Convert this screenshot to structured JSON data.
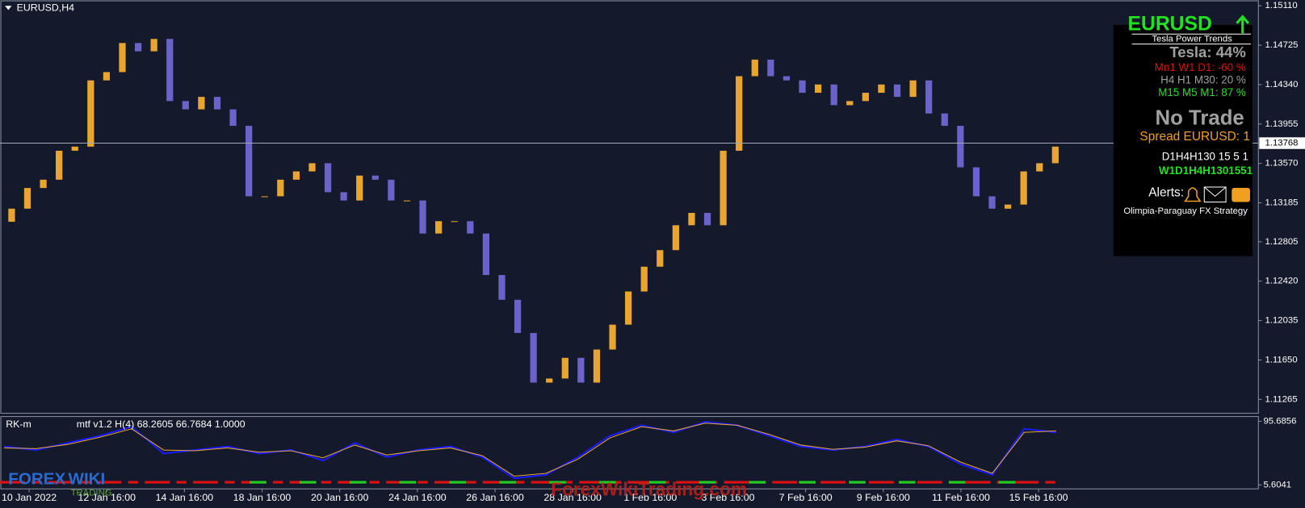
{
  "chart_data": [
    {
      "type": "candlestick",
      "title": "EURUSD,H4",
      "open": [
        1.13,
        1.13128,
        1.1333,
        1.13411,
        1.13694,
        1.13734,
        1.14381,
        1.14462,
        1.14746,
        1.14665,
        1.14786,
        1.14179,
        1.14098,
        1.1422,
        1.14098,
        1.13937,
        1.13249,
        1.13249,
        1.13411,
        1.13492,
        1.13572,
        1.13289,
        1.13208,
        1.13451,
        1.13411,
        1.13208,
        1.13208,
        1.12885,
        1.13006,
        1.13006,
        1.12885,
        1.1248,
        1.12238,
        1.11914,
        1.11429,
        1.11469,
        1.11671,
        1.11429,
        1.11752,
        1.11995,
        1.12319,
        1.12561,
        1.12723,
        1.12966,
        1.13087,
        1.12966,
        1.13694,
        1.14422,
        1.14584,
        1.14422,
        1.14381,
        1.1426,
        1.14341,
        1.14139,
        1.14179,
        1.1426,
        1.14341,
        1.1422,
        1.14381,
        1.14058,
        1.13937,
        1.13532,
        1.13249,
        1.13128,
        1.13168,
        1.13492,
        1.13572
      ],
      "close": [
        1.13128,
        1.1333,
        1.13411,
        1.13694,
        1.13734,
        1.14381,
        1.14462,
        1.14746,
        1.14665,
        1.14786,
        1.14179,
        1.14098,
        1.1422,
        1.14098,
        1.13937,
        1.13249,
        1.13249,
        1.13411,
        1.13492,
        1.13572,
        1.13289,
        1.13208,
        1.13451,
        1.13411,
        1.13208,
        1.13208,
        1.12885,
        1.13006,
        1.13006,
        1.12885,
        1.1248,
        1.12238,
        1.11914,
        1.11429,
        1.11469,
        1.11671,
        1.11429,
        1.11752,
        1.11995,
        1.12319,
        1.12561,
        1.12723,
        1.12966,
        1.13087,
        1.12966,
        1.13694,
        1.14422,
        1.14584,
        1.14422,
        1.14381,
        1.1426,
        1.14341,
        1.14139,
        1.14179,
        1.1426,
        1.14341,
        1.1422,
        1.14381,
        1.14058,
        1.13937,
        1.13532,
        1.13249,
        1.13128,
        1.13168,
        1.13492,
        1.13572,
        1.13734
      ],
      "up_color": "#e8a630",
      "down_color": "#6b63c9",
      "ylim": [
        1.1113,
        1.1515
      ],
      "yticks": [
        {
          "value": 1.1511,
          "label": "1.15110"
        },
        {
          "value": 1.14725,
          "label": "1.14725"
        },
        {
          "value": 1.1434,
          "label": "1.14340"
        },
        {
          "value": 1.13955,
          "label": "1.13955"
        },
        {
          "value": 1.1357,
          "label": "1.13570"
        },
        {
          "value": 1.13185,
          "label": "1.13185"
        },
        {
          "value": 1.12805,
          "label": "1.12805"
        },
        {
          "value": 1.1242,
          "label": "1.12420"
        },
        {
          "value": 1.12035,
          "label": "1.12035"
        },
        {
          "value": 1.1165,
          "label": "1.11650"
        },
        {
          "value": 1.11265,
          "label": "1.11265"
        }
      ],
      "current_price": 1.13768,
      "x_labels": [
        "10 Jan 2022",
        "12 Jan 16:00",
        "14 Jan 16:00",
        "18 Jan 16:00",
        "20 Jan 16:00",
        "24 Jan 16:00",
        "26 Jan 16:00",
        "28 Jan 16:00",
        "1 Feb 16:00",
        "3 Feb 16:00",
        "7 Feb 16:00",
        "9 Feb 16:00",
        "11 Feb 16:00",
        "15 Feb 16:00"
      ]
    },
    {
      "type": "line",
      "title": "RK-m",
      "subtitle": "mtf v1.2 H(4) 68.2605 66.7684 1.0000",
      "ylim": [
        0,
        100
      ],
      "yticks": [
        95.6856,
        5.6041
      ],
      "series": [
        {
          "color": "#1a1aff",
          "values": [
            60,
            55,
            65,
            75,
            88,
            50,
            55,
            60,
            50,
            55,
            40,
            65,
            45,
            55,
            60,
            45,
            15,
            20,
            45,
            75,
            90,
            80,
            95,
            90,
            75,
            60,
            55,
            60,
            70,
            60,
            35,
            20,
            85,
            80
          ]
        },
        {
          "color": "#e8a630",
          "values": [
            58,
            57,
            63,
            73,
            85,
            55,
            54,
            58,
            52,
            54,
            44,
            62,
            48,
            54,
            58,
            47,
            18,
            22,
            42,
            72,
            88,
            82,
            93,
            90,
            77,
            62,
            56,
            59,
            68,
            61,
            38,
            22,
            80,
            82
          ]
        }
      ]
    }
  ],
  "panel": {
    "symbol": "EURUSD",
    "subtitle": "Tesla Power Trends",
    "tesla": "Tesla: 44%",
    "rows": [
      "Mn1 W1 D1: -60 %",
      "H4 H1 M30: 20 %",
      "M15 M5 M1: 87 %"
    ],
    "status": "No Trade",
    "spread": "Spread EURUSD: 1",
    "frames": "D1H4H130 15 5 1",
    "frames_code": "W1D1H4H1301551",
    "alerts": "Alerts:",
    "strategy": "Olimpia-Paraguay FX Strategy"
  },
  "watermark": "ForexWikiTrading.com",
  "logo": {
    "line1": "FOREX",
    "line2": "WIKI",
    "line3": "TRADING"
  }
}
